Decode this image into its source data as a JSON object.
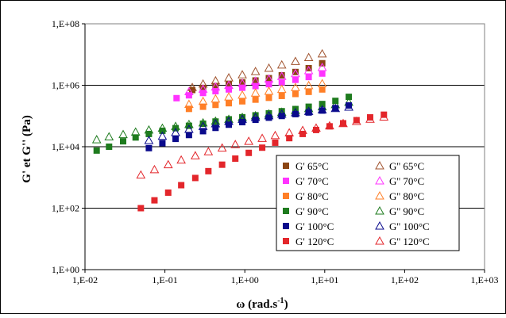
{
  "chart_data": {
    "type": "scatter",
    "x_scale": "log",
    "y_scale": "log",
    "xlim": [
      0.01,
      1000
    ],
    "ylim": [
      1,
      100000000
    ],
    "grid": "horizontal major lines",
    "legend_position": "bottom-right",
    "xlabel": "ω (rad.s",
    "xlabel_sup": "-1",
    "xlabel_end": ")",
    "ylabel": "G' et G'' (Pa)",
    "x_tick_labels": [
      "1,E-02",
      "1,E-01",
      "1,E+00",
      "1,E+01",
      "1,E+02",
      "1,E+03"
    ],
    "y_tick_labels": [
      "1,E+00",
      "1,E+02",
      "1,E+04",
      "1,E+06",
      "1,E+08"
    ],
    "series": [
      {
        "name": "G' 65°C",
        "marker": "square",
        "color": "#8B4513",
        "x": [
          0.22,
          0.3,
          0.43,
          0.63,
          0.93,
          1.36,
          2.0,
          2.9,
          4.3,
          6.3,
          9.3
        ],
        "y": [
          700000,
          820000,
          940000,
          1070000,
          1230000,
          1430000,
          1700000,
          2100000,
          2700000,
          3600000,
          5200000
        ]
      },
      {
        "name": "G'' 65°C",
        "marker": "triangle",
        "color": "#A0522D",
        "x": [
          0.22,
          0.3,
          0.43,
          0.63,
          0.93,
          1.36,
          2.0,
          2.9,
          4.3,
          6.3,
          9.3
        ],
        "y": [
          850000,
          1100000,
          1400000,
          1750000,
          2200000,
          2800000,
          3600000,
          4600000,
          6000000,
          8000000,
          10500000
        ]
      },
      {
        "name": "G' 70°C",
        "marker": "square",
        "color": "#FF33FF",
        "x": [
          0.14,
          0.2,
          0.3,
          0.43,
          0.63,
          0.93,
          1.36,
          2.0,
          2.9,
          4.3,
          6.3,
          9.3
        ],
        "y": [
          380000,
          470000,
          560000,
          640000,
          730000,
          830000,
          940000,
          1080000,
          1250000,
          1500000,
          1850000,
          2400000
        ]
      },
      {
        "name": "G'' 70°C",
        "marker": "triangle",
        "color": "#FF33FF",
        "x": [
          0.2,
          0.3,
          0.43,
          0.63,
          0.93,
          1.36,
          2.0,
          2.9,
          4.3,
          6.3,
          9.3
        ],
        "y": [
          620000,
          750000,
          880000,
          1000000,
          1150000,
          1350000,
          1600000,
          1950000,
          2400000,
          3000000,
          3800000
        ]
      },
      {
        "name": "G' 80°C",
        "marker": "square",
        "color": "#FF7F27",
        "x": [
          0.2,
          0.3,
          0.43,
          0.63,
          0.93,
          1.36,
          2.0,
          2.9,
          4.3,
          6.3,
          9.3
        ],
        "y": [
          170000,
          200000,
          230000,
          260000,
          300000,
          340000,
          390000,
          450000,
          520000,
          610000,
          730000
        ]
      },
      {
        "name": "G'' 80°C",
        "marker": "triangle",
        "color": "#FF7F27",
        "x": [
          0.2,
          0.3,
          0.43,
          0.63,
          0.93,
          1.36,
          2.0,
          2.9,
          4.3,
          6.3,
          9.3
        ],
        "y": [
          240000,
          300000,
          360000,
          420000,
          480000,
          560000,
          640000,
          740000,
          850000,
          980000,
          1130000
        ]
      },
      {
        "name": "G' 90°C",
        "marker": "square",
        "color": "#1E7B1E",
        "x": [
          0.014,
          0.02,
          0.03,
          0.043,
          0.063,
          0.093,
          0.136,
          0.2,
          0.3,
          0.43,
          0.63,
          0.93,
          1.36,
          2.0,
          2.9,
          4.3,
          6.3,
          9.3,
          13.6,
          20
        ],
        "y": [
          7500,
          10000,
          15000,
          20000,
          26000,
          33000,
          40000,
          48000,
          56000,
          66000,
          78000,
          91000,
          105000,
          122000,
          143000,
          168000,
          200000,
          245000,
          310000,
          420000
        ]
      },
      {
        "name": "G'' 90°C",
        "marker": "triangle",
        "color": "#1E7B1E",
        "x": [
          0.014,
          0.02,
          0.03,
          0.043,
          0.063,
          0.093,
          0.136,
          0.2,
          0.3,
          0.43,
          0.63,
          0.93,
          1.36,
          2.0,
          2.9,
          4.3,
          6.3,
          9.3,
          13.6,
          20
        ],
        "y": [
          17000,
          21000,
          25000,
          30000,
          35000,
          40000,
          46000,
          53000,
          60000,
          68000,
          78000,
          90000,
          102000,
          117000,
          133000,
          152000,
          175000,
          200000,
          235000,
          280000
        ]
      },
      {
        "name": "G' 100°C",
        "marker": "square",
        "color": "#0A0A8C",
        "x": [
          0.063,
          0.093,
          0.136,
          0.2,
          0.3,
          0.43,
          0.63,
          0.93,
          1.36,
          2.0,
          2.9,
          4.3,
          6.3,
          9.3,
          13.6,
          20
        ],
        "y": [
          9000,
          13000,
          18000,
          24000,
          32000,
          41000,
          52000,
          63000,
          75000,
          88000,
          100000,
          115000,
          130000,
          150000,
          180000,
          220000
        ]
      },
      {
        "name": "G'' 100°C",
        "marker": "triangle",
        "color": "#0A0A8C",
        "x": [
          0.063,
          0.093,
          0.136,
          0.2,
          0.3,
          0.43,
          0.63,
          0.93,
          1.36,
          2.0,
          2.9,
          4.3,
          6.3,
          9.3,
          13.6,
          20
        ],
        "y": [
          16000,
          22000,
          29000,
          37000,
          46000,
          56000,
          67000,
          78000,
          90000,
          102000,
          115000,
          128000,
          142000,
          158000,
          176000,
          195000
        ]
      },
      {
        "name": "G' 120°C",
        "marker": "square",
        "color": "#E3262B",
        "x": [
          0.05,
          0.074,
          0.11,
          0.16,
          0.24,
          0.35,
          0.52,
          0.76,
          1.12,
          1.65,
          2.4,
          3.6,
          5.3,
          7.8,
          11.5,
          17,
          25,
          37,
          55
        ],
        "y": [
          100,
          180,
          320,
          560,
          960,
          1600,
          2600,
          4100,
          6300,
          9300,
          13500,
          19000,
          26000,
          35000,
          46000,
          58000,
          73000,
          90000,
          110000
        ]
      },
      {
        "name": "G'' 120°C",
        "marker": "triangle",
        "color": "#E3262B",
        "x": [
          0.05,
          0.074,
          0.11,
          0.16,
          0.24,
          0.35,
          0.52,
          0.76,
          1.12,
          1.65,
          2.4,
          3.6,
          5.3,
          7.8,
          11.5,
          17,
          25,
          37,
          55
        ],
        "y": [
          1200,
          1800,
          2600,
          3700,
          5100,
          6900,
          9100,
          11800,
          15000,
          18800,
          23200,
          28200,
          34000,
          40500,
          48000,
          57000,
          67000,
          79000,
          93000
        ]
      }
    ]
  }
}
